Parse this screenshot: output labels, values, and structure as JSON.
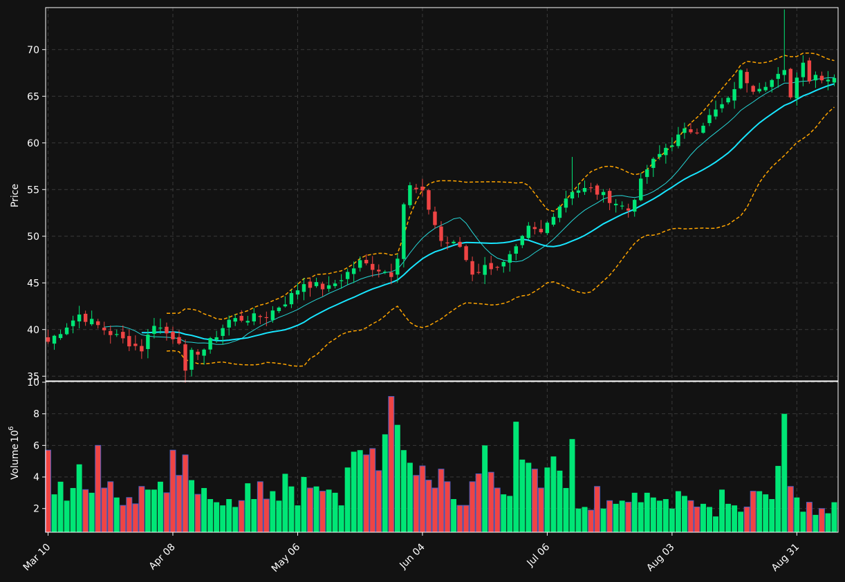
{
  "chart_data": {
    "type": "candlestick",
    "style": {
      "background": "#121212",
      "up_color": "#00e676",
      "down_color": "#ef4444",
      "edge_color_volume": "#4a5fc1",
      "ma_fast_color": "#26d7d7",
      "ma_slow_color": "#18e6ff",
      "band_color": "#ffa500",
      "grid": true,
      "grid_style": "dashed"
    },
    "x_tick_labels": [
      "Mar 10",
      "Apr 08",
      "May 06",
      "Jun 04",
      "Jul 06",
      "Aug 03",
      "Aug 31"
    ],
    "x_tick_indices": [
      0,
      20,
      40,
      60,
      80,
      100,
      120
    ],
    "price_panel": {
      "ylabel": "Price",
      "ylim": [
        34.5,
        74.5
      ],
      "yticks": [
        35,
        40,
        45,
        50,
        55,
        60,
        65,
        70
      ]
    },
    "volume_panel": {
      "ylabel": "Volume",
      "ylabel_multiplier": "6",
      "ylim": [
        0.5,
        10
      ],
      "yticks": [
        2,
        4,
        6,
        8,
        10
      ]
    },
    "indicators": [
      "moving average (fast)",
      "moving average (slow)",
      "upper band",
      "lower band"
    ],
    "ohlc_anchor_closes": [
      [
        0,
        38.7
      ],
      [
        5,
        41.6
      ],
      [
        10,
        39.6
      ],
      [
        15,
        37.9
      ],
      [
        17,
        40.7
      ],
      [
        19,
        39.6
      ],
      [
        21,
        38.9
      ],
      [
        22,
        35.2
      ],
      [
        23,
        37.4
      ],
      [
        25,
        37.9
      ],
      [
        29,
        41.0
      ],
      [
        33,
        41.3
      ],
      [
        35,
        41.5
      ],
      [
        38,
        43.0
      ],
      [
        41,
        45.0
      ],
      [
        45,
        44.4
      ],
      [
        50,
        47.2
      ],
      [
        55,
        46.0
      ],
      [
        56,
        48.0
      ],
      [
        57,
        53.5
      ],
      [
        58,
        55.3
      ],
      [
        60,
        54.5
      ],
      [
        61,
        53.0
      ],
      [
        63,
        49.5
      ],
      [
        66,
        48.9
      ],
      [
        68,
        46.1
      ],
      [
        70,
        46.7
      ],
      [
        73,
        47.0
      ],
      [
        75,
        48.5
      ],
      [
        77,
        50.8
      ],
      [
        79,
        50.3
      ],
      [
        81,
        52.5
      ],
      [
        84,
        55.0
      ],
      [
        87,
        55.0
      ],
      [
        90,
        54.0
      ],
      [
        93,
        52.8
      ],
      [
        96,
        57.2
      ],
      [
        99,
        59.5
      ],
      [
        102,
        61.2
      ],
      [
        104,
        61.5
      ],
      [
        106,
        62.8
      ],
      [
        108,
        64.0
      ],
      [
        109,
        64.5
      ],
      [
        111,
        67.5
      ],
      [
        113,
        65.9
      ],
      [
        116,
        66.7
      ],
      [
        118,
        67.5
      ],
      [
        119,
        65.2
      ],
      [
        120,
        67.0
      ],
      [
        121,
        69.0
      ],
      [
        122,
        66.8
      ],
      [
        123,
        67.3
      ],
      [
        125,
        66.9
      ],
      [
        126,
        67.2
      ]
    ],
    "volume_anchors_millions": [
      [
        0,
        5.7
      ],
      [
        1,
        2.9
      ],
      [
        2,
        3.7
      ],
      [
        3,
        2.5
      ],
      [
        4,
        3.3
      ],
      [
        5,
        4.8
      ],
      [
        6,
        3.2
      ],
      [
        7,
        3.0
      ],
      [
        8,
        6.0
      ],
      [
        9,
        3.3
      ],
      [
        10,
        3.7
      ],
      [
        11,
        2.7
      ],
      [
        12,
        2.2
      ],
      [
        13,
        2.7
      ],
      [
        14,
        2.3
      ],
      [
        15,
        3.4
      ],
      [
        16,
        3.2
      ],
      [
        17,
        3.2
      ],
      [
        18,
        3.7
      ],
      [
        19,
        3.0
      ],
      [
        20,
        5.7
      ],
      [
        21,
        4.1
      ],
      [
        22,
        5.4
      ],
      [
        23,
        3.8
      ],
      [
        24,
        2.9
      ],
      [
        25,
        3.3
      ],
      [
        26,
        2.6
      ],
      [
        27,
        2.4
      ],
      [
        28,
        2.2
      ],
      [
        29,
        2.6
      ],
      [
        30,
        2.1
      ],
      [
        31,
        2.5
      ],
      [
        32,
        3.6
      ],
      [
        33,
        2.6
      ],
      [
        34,
        3.7
      ],
      [
        35,
        2.6
      ],
      [
        36,
        3.1
      ],
      [
        37,
        2.5
      ],
      [
        38,
        4.2
      ],
      [
        39,
        3.4
      ],
      [
        40,
        2.2
      ],
      [
        41,
        4.0
      ],
      [
        42,
        3.3
      ],
      [
        43,
        3.4
      ],
      [
        44,
        3.1
      ],
      [
        45,
        3.2
      ],
      [
        46,
        3.0
      ],
      [
        47,
        2.2
      ],
      [
        48,
        4.6
      ],
      [
        49,
        5.6
      ],
      [
        50,
        5.7
      ],
      [
        51,
        5.4
      ],
      [
        52,
        5.8
      ],
      [
        53,
        4.4
      ],
      [
        54,
        6.7
      ],
      [
        55,
        9.1
      ],
      [
        56,
        7.3
      ],
      [
        57,
        5.7
      ],
      [
        58,
        4.9
      ],
      [
        59,
        4.1
      ],
      [
        60,
        4.7
      ],
      [
        61,
        3.8
      ],
      [
        62,
        3.3
      ],
      [
        63,
        4.5
      ],
      [
        64,
        3.7
      ],
      [
        65,
        2.6
      ],
      [
        66,
        2.2
      ],
      [
        67,
        2.2
      ],
      [
        68,
        3.7
      ],
      [
        69,
        4.2
      ],
      [
        70,
        6.0
      ],
      [
        71,
        4.3
      ],
      [
        72,
        3.3
      ],
      [
        73,
        2.9
      ],
      [
        74,
        2.8
      ],
      [
        75,
        7.5
      ],
      [
        76,
        5.1
      ],
      [
        77,
        4.9
      ],
      [
        78,
        4.5
      ],
      [
        79,
        3.3
      ],
      [
        80,
        4.6
      ],
      [
        81,
        5.3
      ],
      [
        82,
        4.4
      ],
      [
        83,
        3.3
      ],
      [
        84,
        6.4
      ],
      [
        85,
        2.0
      ],
      [
        86,
        2.1
      ],
      [
        87,
        1.9
      ],
      [
        88,
        3.4
      ],
      [
        89,
        2.0
      ],
      [
        90,
        2.5
      ],
      [
        91,
        2.3
      ],
      [
        92,
        2.5
      ],
      [
        93,
        2.4
      ],
      [
        94,
        3.0
      ],
      [
        95,
        2.4
      ],
      [
        96,
        3.0
      ],
      [
        97,
        2.7
      ],
      [
        98,
        2.5
      ],
      [
        99,
        2.6
      ],
      [
        100,
        2.0
      ],
      [
        101,
        3.1
      ],
      [
        102,
        2.8
      ],
      [
        103,
        2.5
      ],
      [
        104,
        2.1
      ],
      [
        105,
        2.3
      ],
      [
        106,
        2.1
      ],
      [
        107,
        1.5
      ],
      [
        108,
        3.2
      ],
      [
        109,
        2.3
      ],
      [
        110,
        2.2
      ],
      [
        111,
        1.8
      ],
      [
        112,
        2.1
      ],
      [
        113,
        3.1
      ],
      [
        114,
        3.1
      ],
      [
        115,
        2.9
      ],
      [
        116,
        2.6
      ],
      [
        117,
        4.7
      ],
      [
        118,
        8.0
      ],
      [
        119,
        3.4
      ],
      [
        120,
        2.7
      ],
      [
        121,
        1.8
      ],
      [
        122,
        2.4
      ],
      [
        123,
        1.6
      ],
      [
        124,
        2.0
      ],
      [
        125,
        1.7
      ],
      [
        126,
        2.4
      ]
    ],
    "n_days": 127
  }
}
